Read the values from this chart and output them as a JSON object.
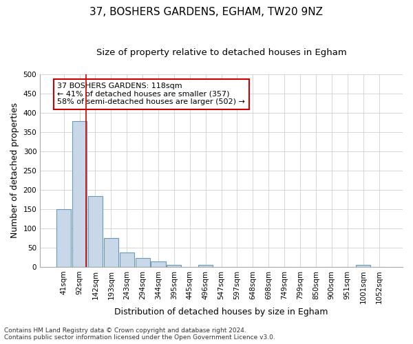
{
  "title": "37, BOSHERS GARDENS, EGHAM, TW20 9NZ",
  "subtitle": "Size of property relative to detached houses in Egham",
  "xlabel": "Distribution of detached houses by size in Egham",
  "ylabel": "Number of detached properties",
  "footnote1": "Contains HM Land Registry data © Crown copyright and database right 2024.",
  "footnote2": "Contains public sector information licensed under the Open Government Licence v3.0.",
  "bins": [
    "41sqm",
    "92sqm",
    "142sqm",
    "193sqm",
    "243sqm",
    "294sqm",
    "344sqm",
    "395sqm",
    "445sqm",
    "496sqm",
    "547sqm",
    "597sqm",
    "648sqm",
    "698sqm",
    "749sqm",
    "799sqm",
    "850sqm",
    "900sqm",
    "951sqm",
    "1001sqm",
    "1052sqm"
  ],
  "values": [
    150,
    378,
    183,
    75,
    37,
    23,
    14,
    6,
    0,
    5,
    0,
    0,
    0,
    0,
    0,
    0,
    0,
    0,
    0,
    5,
    0
  ],
  "bar_color": "#c8d8e8",
  "bar_edge_color": "#6899bb",
  "property_line_x": 1.42,
  "property_line_color": "#cc0000",
  "annotation_text": "37 BOSHERS GARDENS: 118sqm\n← 41% of detached houses are smaller (357)\n58% of semi-detached houses are larger (502) →",
  "annotation_box_color": "#ffffff",
  "annotation_box_edge": "#cc0000",
  "ylim": [
    0,
    500
  ],
  "yticks": [
    0,
    50,
    100,
    150,
    200,
    250,
    300,
    350,
    400,
    450,
    500
  ],
  "background_color": "#ffffff",
  "grid_color": "#d0d0d0",
  "title_fontsize": 11,
  "subtitle_fontsize": 9.5,
  "axis_label_fontsize": 9,
  "tick_fontsize": 7.5,
  "annotation_fontsize": 8,
  "footnote_fontsize": 6.5
}
